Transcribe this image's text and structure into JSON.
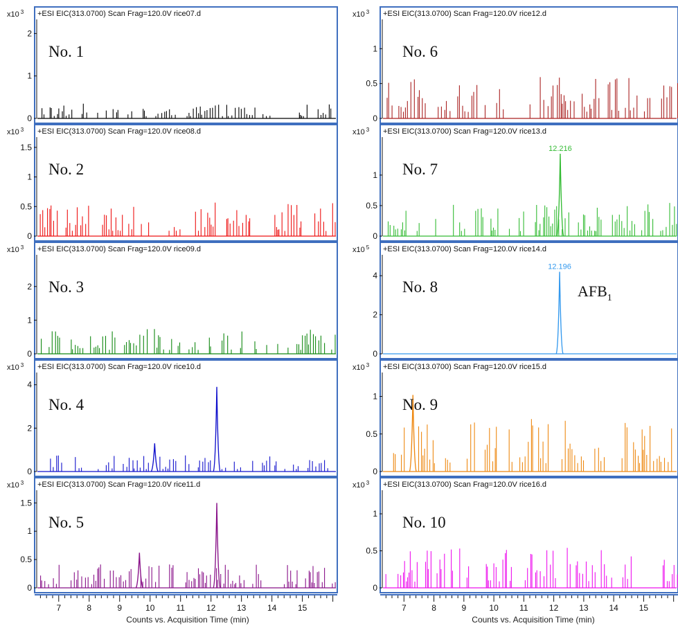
{
  "figure": {
    "xlabel": "Counts vs. Acquisition Time (min)",
    "xticks": [
      "7",
      "8",
      "9",
      "10",
      "11",
      "12",
      "13",
      "14",
      "15"
    ]
  },
  "chart_data": [
    {
      "type": "line",
      "panel": "No. 1",
      "header": "+ESI EIC(313.0700) Scan Frag=120.0V rice07.d",
      "exponent_prefix": "x10",
      "exponent": "3",
      "yticks": [
        "0",
        "1",
        "2"
      ],
      "ylim": [
        0,
        2.3
      ],
      "color": "#000000",
      "xlim": [
        6.3,
        16.1
      ],
      "peaks": [],
      "noise_max": 0.35
    },
    {
      "type": "line",
      "panel": "No. 2",
      "header": "+ESI EIC(313.0700) Scan Frag=120.0V rice08.d",
      "exponent_prefix": "x10",
      "exponent": "3",
      "yticks": [
        "0",
        "0.5",
        "1",
        "1.5"
      ],
      "ylim": [
        0,
        1.65
      ],
      "color": "#ee1111",
      "xlim": [
        6.3,
        16.1
      ],
      "peaks": [],
      "noise_max": 0.58
    },
    {
      "type": "line",
      "panel": "No. 3",
      "header": "+ESI EIC(313.0700) Scan Frag=120.0V rice09.d",
      "exponent_prefix": "x10",
      "exponent": "3",
      "yticks": [
        "0",
        "1",
        "2"
      ],
      "ylim": [
        0,
        2.9
      ],
      "color": "#118811",
      "xlim": [
        6.3,
        16.1
      ],
      "peaks": [],
      "noise_max": 0.75
    },
    {
      "type": "line",
      "panel": "No. 4",
      "header": "+ESI EIC(313.0700) Scan Frag=120.0V rice10.d",
      "exponent_prefix": "x10",
      "exponent": "3",
      "yticks": [
        "0",
        "2",
        "4"
      ],
      "ylim": [
        0,
        4.5
      ],
      "color": "#1111cc",
      "xlim": [
        6.3,
        16.1
      ],
      "peaks": [
        {
          "x": 12.19,
          "y": 3.9,
          "label": ""
        },
        {
          "x": 10.15,
          "y": 1.3,
          "label": ""
        }
      ],
      "noise_max": 0.75
    },
    {
      "type": "line",
      "panel": "No. 5",
      "header": "+ESI EIC(313.0700) Scan Frag=120.0V rice11.d",
      "exponent_prefix": "x10",
      "exponent": "3",
      "yticks": [
        "0",
        "0.5",
        "1",
        "1.5"
      ],
      "ylim": [
        0,
        1.7
      ],
      "color": "#881188",
      "xlim": [
        6.3,
        16.1
      ],
      "peaks": [
        {
          "x": 12.19,
          "y": 1.5,
          "label": ""
        },
        {
          "x": 9.65,
          "y": 0.62,
          "label": ""
        }
      ],
      "noise_max": 0.42
    },
    {
      "type": "line",
      "panel": "No. 6",
      "header": "+ESI EIC(313.0700) Scan Frag=120.0V rice12.d",
      "exponent_prefix": "x10",
      "exponent": "3",
      "yticks": [
        "0",
        "0.5",
        "1"
      ],
      "ylim": [
        0,
        1.4
      ],
      "color": "#aa2222",
      "xlim": [
        6.3,
        16.1
      ],
      "peaks": [],
      "noise_max": 0.62
    },
    {
      "type": "line",
      "panel": "No. 7",
      "header": "+ESI EIC(313.0700) Scan Frag=120.0V rice13.d",
      "exponent_prefix": "x10",
      "exponent": "3",
      "yticks": [
        "0",
        "0.5",
        "1"
      ],
      "ylim": [
        0,
        1.6
      ],
      "color": "#33bb33",
      "xlim": [
        6.3,
        16.1
      ],
      "peaks": [
        {
          "x": 12.216,
          "y": 1.35,
          "label": "12.216"
        }
      ],
      "noise_max": 0.55
    },
    {
      "type": "line",
      "panel": "No. 8",
      "header": "+ESI EIC(313.0700) Scan Frag=120.0V rice14.d",
      "exponent_prefix": "x10",
      "exponent": "5",
      "yticks": [
        "0",
        "2",
        "4"
      ],
      "ylim": [
        0,
        5.0
      ],
      "color": "#3399ee",
      "xlim": [
        6.3,
        16.1
      ],
      "peaks": [
        {
          "x": 12.196,
          "y": 4.2,
          "label": "12.196"
        }
      ],
      "noise_max": 0.0,
      "annotation": {
        "text": "AFB",
        "sub": "1"
      }
    },
    {
      "type": "line",
      "panel": "No. 9",
      "header": "+ESI EIC(313.0700) Scan Frag=120.0V rice15.d",
      "exponent_prefix": "x10",
      "exponent": "3",
      "yticks": [
        "0",
        "0.5",
        "1"
      ],
      "ylim": [
        0,
        1.3
      ],
      "color": "#ee8811",
      "xlim": [
        6.3,
        16.1
      ],
      "peaks": [
        {
          "x": 7.3,
          "y": 1.02,
          "label": ""
        }
      ],
      "noise_max": 0.7
    },
    {
      "type": "line",
      "panel": "No. 10",
      "header": "+ESI EIC(313.0700) Scan Frag=120.0V rice16.d",
      "exponent_prefix": "x10",
      "exponent": "3",
      "yticks": [
        "0",
        "0.5",
        "1"
      ],
      "ylim": [
        0,
        1.3
      ],
      "color": "#ee11ee",
      "xlim": [
        6.3,
        16.1
      ],
      "peaks": [],
      "noise_max": 0.55
    }
  ]
}
